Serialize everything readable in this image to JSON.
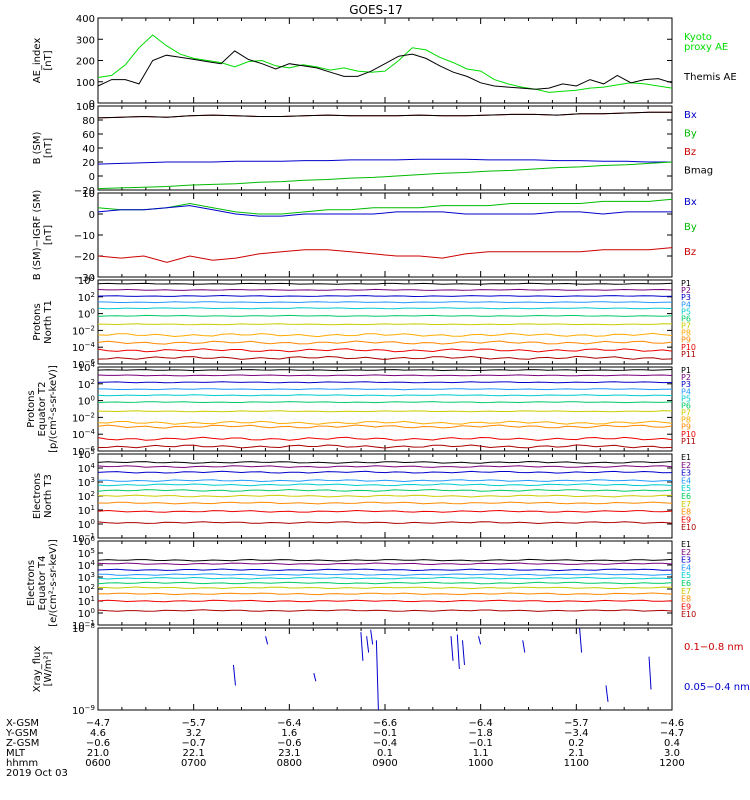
{
  "title": "GOES-17",
  "chart_data": [
    {
      "id": "ae",
      "type": "line",
      "ylabel": [
        "AE_index",
        "[nT]"
      ],
      "ylim": [
        0,
        400
      ],
      "ticks": [
        "400",
        "300",
        "200",
        "100",
        "0"
      ],
      "legend": [
        {
          "text": "Kyoto",
          "color": "#00dd00"
        },
        {
          "text": "proxy AE",
          "color": "#00dd00"
        },
        {
          "text": "Themis AE",
          "color": "#000000"
        }
      ],
      "series": [
        {
          "color": "#00dd00",
          "values": [
            120,
            130,
            180,
            260,
            320,
            270,
            230,
            210,
            200,
            190,
            170,
            195,
            200,
            175,
            165,
            180,
            170,
            155,
            165,
            150,
            145,
            150,
            200,
            260,
            250,
            215,
            190,
            160,
            150,
            110,
            90,
            75,
            65,
            50,
            55,
            60,
            70,
            75,
            85,
            95,
            90,
            80,
            70
          ]
        },
        {
          "color": "#000000",
          "values": [
            80,
            110,
            110,
            90,
            200,
            225,
            215,
            205,
            195,
            185,
            245,
            205,
            185,
            160,
            185,
            175,
            165,
            145,
            125,
            125,
            150,
            185,
            220,
            230,
            210,
            175,
            145,
            125,
            95,
            80,
            75,
            70,
            65,
            70,
            90,
            80,
            110,
            90,
            130,
            95,
            110,
            115,
            95
          ]
        }
      ]
    },
    {
      "id": "bsm",
      "type": "line",
      "ylabel": [
        "B (SM)",
        "[nT]"
      ],
      "ylim": [
        -20,
        100
      ],
      "ticks": [
        "100",
        "80",
        "60",
        "40",
        "20",
        "0",
        "−20"
      ],
      "legend": [
        {
          "text": "Bx",
          "color": "#0000cc"
        },
        {
          "text": "By",
          "color": "#00bb00"
        },
        {
          "text": "Bz",
          "color": "#cc0000"
        },
        {
          "text": "Bmag",
          "color": "#000000"
        }
      ],
      "series": [
        {
          "color": "#cc0000",
          "values": [
            83,
            84,
            85,
            84,
            86,
            87,
            86,
            85,
            85,
            86,
            87,
            86,
            86,
            86,
            87,
            86,
            86,
            87,
            88,
            88,
            87,
            89,
            89,
            90,
            91,
            91
          ]
        },
        {
          "color": "#000000",
          "values": [
            83,
            84,
            85,
            84,
            86,
            87,
            86,
            85,
            85,
            86,
            87,
            86,
            86,
            86,
            87,
            86,
            86,
            87,
            88,
            88,
            87,
            89,
            89,
            90,
            91,
            91
          ]
        },
        {
          "color": "#0000cc",
          "values": [
            17,
            18,
            19,
            20,
            20,
            20,
            21,
            21,
            21,
            22,
            22,
            23,
            23,
            23,
            24,
            24,
            24,
            23,
            23,
            23,
            22,
            22,
            21,
            21,
            20,
            20
          ]
        },
        {
          "color": "#00bb00",
          "values": [
            -18,
            -17,
            -16,
            -15,
            -13,
            -12,
            -11,
            -9,
            -8,
            -6,
            -5,
            -3,
            -2,
            0,
            2,
            4,
            5,
            7,
            8,
            10,
            12,
            13,
            15,
            16,
            18,
            20
          ]
        }
      ]
    },
    {
      "id": "bsm-igrf",
      "type": "line",
      "ylabel": [
        "B (SM)−IGRF (SM)",
        "[nT]"
      ],
      "ylim": [
        -30,
        10
      ],
      "ticks": [
        "10",
        "0",
        "−10",
        "−20",
        "−30"
      ],
      "legend": [
        {
          "text": "Bx",
          "color": "#0000cc"
        },
        {
          "text": "By",
          "color": "#00bb00"
        },
        {
          "text": "Bz",
          "color": "#cc0000"
        }
      ],
      "series": [
        {
          "color": "#00bb00",
          "values": [
            3,
            2,
            2,
            3,
            5,
            3,
            1,
            0,
            0,
            1,
            2,
            2,
            3,
            3,
            3,
            4,
            4,
            4,
            5,
            5,
            5,
            5,
            6,
            6,
            6,
            7
          ]
        },
        {
          "color": "#0000cc",
          "values": [
            1,
            2,
            2,
            3,
            4,
            2,
            0,
            -1,
            -1,
            0,
            0,
            0,
            0,
            1,
            1,
            1,
            0,
            0,
            0,
            0,
            1,
            1,
            0,
            1,
            1,
            1
          ]
        },
        {
          "color": "#cc0000",
          "values": [
            -20,
            -21,
            -20,
            -23,
            -20,
            -22,
            -21,
            -19,
            -18,
            -17,
            -17,
            -18,
            -19,
            -20,
            -20,
            -21,
            -19,
            -18,
            -18,
            -18,
            -18,
            -18,
            -17,
            -17,
            -17,
            -16
          ]
        }
      ]
    },
    {
      "id": "protons-t1",
      "type": "line",
      "scale": "log",
      "ylabel": [
        "Protons",
        "North T1"
      ],
      "ylim": [
        -7,
        4
      ],
      "ticks": [
        {
          "m": "10",
          "e": "4"
        },
        {
          "m": "10",
          "e": "2"
        },
        {
          "m": "10",
          "e": "0"
        },
        {
          "m": "10",
          "e": "−2"
        },
        {
          "m": "10",
          "e": "−4"
        },
        {
          "m": "10",
          "e": "−6"
        }
      ],
      "channels": [
        {
          "name": "P1",
          "color": "#000000",
          "level": 3.5
        },
        {
          "name": "P2",
          "color": "#7a007a",
          "level": 2.7
        },
        {
          "name": "P3",
          "color": "#0000cc",
          "level": 1.9
        },
        {
          "name": "P4",
          "color": "#2299ff",
          "level": 1.1
        },
        {
          "name": "P5",
          "color": "#00cccc",
          "level": 0.3
        },
        {
          "name": "P6",
          "color": "#00cc66",
          "level": -0.7
        },
        {
          "name": "P7",
          "color": "#cccc00",
          "level": -1.8
        },
        {
          "name": "P8",
          "color": "#ffaa00",
          "level": -3.2
        },
        {
          "name": "P9",
          "color": "#ff8800",
          "level": -4.2
        },
        {
          "name": "P10",
          "color": "#ee0000",
          "level": -5.2
        },
        {
          "name": "P11",
          "color": "#aa0000",
          "level": -6.2
        }
      ]
    },
    {
      "id": "protons-t2",
      "type": "line",
      "scale": "log",
      "ylabel": [
        "Protons",
        "Equator T2",
        "[p/(cm²-s-sr-keV)]"
      ],
      "ylim": [
        -7,
        4
      ],
      "ticks": [
        {
          "m": "10",
          "e": "4"
        },
        {
          "m": "10",
          "e": "2"
        },
        {
          "m": "10",
          "e": "0"
        },
        {
          "m": "10",
          "e": "−2"
        },
        {
          "m": "10",
          "e": "−4"
        },
        {
          "m": "10",
          "e": "−6"
        }
      ],
      "channels": [
        {
          "name": "P1",
          "color": "#000000",
          "level": 3.6
        },
        {
          "name": "P2",
          "color": "#7a007a",
          "level": 2.9
        },
        {
          "name": "P3",
          "color": "#0000cc",
          "level": 2.0
        },
        {
          "name": "P4",
          "color": "#2299ff",
          "level": 1.1
        },
        {
          "name": "P5",
          "color": "#00cccc",
          "level": 0.3
        },
        {
          "name": "P6",
          "color": "#00cc66",
          "level": -0.6
        },
        {
          "name": "P7",
          "color": "#cccc00",
          "level": -1.8
        },
        {
          "name": "P8",
          "color": "#ffaa00",
          "level": -3.3
        },
        {
          "name": "P9",
          "color": "#ff8800",
          "level": -3.8
        },
        {
          "name": "P10",
          "color": "#ee0000",
          "level": -5.4
        },
        {
          "name": "P11",
          "color": "#aa0000",
          "level": -6.4
        }
      ]
    },
    {
      "id": "electrons-t3",
      "type": "line",
      "scale": "log",
      "ylabel": [
        "Electrons",
        "North T3"
      ],
      "ylim": [
        -1,
        5
      ],
      "ticks": [
        {
          "m": "10",
          "e": "5"
        },
        {
          "m": "10",
          "e": "4"
        },
        {
          "m": "10",
          "e": "3"
        },
        {
          "m": "10",
          "e": "2"
        },
        {
          "m": "10",
          "e": "1"
        },
        {
          "m": "10",
          "e": "0"
        },
        {
          "m": "10",
          "e": "−1"
        }
      ],
      "channels": [
        {
          "name": "E1",
          "color": "#000000",
          "level": 4.4
        },
        {
          "name": "E2",
          "color": "#7a007a",
          "level": 4.1
        },
        {
          "name": "E3",
          "color": "#0000cc",
          "level": 3.7
        },
        {
          "name": "E4",
          "color": "#2299ff",
          "level": 3.1
        },
        {
          "name": "E5",
          "color": "#00cccc",
          "level": 2.8
        },
        {
          "name": "E6",
          "color": "#00cc66",
          "level": 2.4
        },
        {
          "name": "E7",
          "color": "#cccc00",
          "level": 2.0
        },
        {
          "name": "E8",
          "color": "#ff8800",
          "level": 1.5
        },
        {
          "name": "E9",
          "color": "#ee0000",
          "level": 0.9
        },
        {
          "name": "E10",
          "color": "#aa0000",
          "level": 0.1
        }
      ]
    },
    {
      "id": "electrons-t4",
      "type": "line",
      "scale": "log",
      "ylabel": [
        "Electrons",
        "Equator T4",
        "[e/(cm²-s-sr-keV)]"
      ],
      "ylim": [
        -1,
        6
      ],
      "ticks": [
        {
          "m": "10",
          "e": "6"
        },
        {
          "m": "10",
          "e": "5"
        },
        {
          "m": "10",
          "e": "4"
        },
        {
          "m": "10",
          "e": "3"
        },
        {
          "m": "10",
          "e": "2"
        },
        {
          "m": "10",
          "e": "1"
        },
        {
          "m": "10",
          "e": "0"
        },
        {
          "m": "10",
          "e": "−1"
        }
      ],
      "channels": [
        {
          "name": "E1",
          "color": "#000000",
          "level": 4.4
        },
        {
          "name": "E2",
          "color": "#7a007a",
          "level": 4.1
        },
        {
          "name": "E3",
          "color": "#0000cc",
          "level": 3.6
        },
        {
          "name": "E4",
          "color": "#2299ff",
          "level": 3.2
        },
        {
          "name": "E5",
          "color": "#00cccc",
          "level": 2.9
        },
        {
          "name": "E6",
          "color": "#00cc66",
          "level": 2.5
        },
        {
          "name": "E7",
          "color": "#cccc00",
          "level": 2.1
        },
        {
          "name": "E8",
          "color": "#ff8800",
          "level": 1.6
        },
        {
          "name": "E9",
          "color": "#ee0000",
          "level": 1.0
        },
        {
          "name": "E10",
          "color": "#aa0000",
          "level": 0.2
        }
      ]
    },
    {
      "id": "xray",
      "type": "line",
      "scale": "log",
      "ylabel": [
        "Xray_flux",
        "[W/m²]"
      ],
      "ylim": [
        -9,
        -8
      ],
      "ticks": [
        {
          "m": "10",
          "e": "−8"
        },
        {
          "m": "10",
          "e": "−9"
        }
      ],
      "legend": [
        {
          "text": "0.1−0.8 nm",
          "color": "#cc0000"
        },
        {
          "text": "0.05−0.4 nm",
          "color": "#0000cc"
        }
      ],
      "bursts": [
        {
          "t": 0.236,
          "lo": -8.7,
          "hi": -8.45
        },
        {
          "t": 0.292,
          "lo": -8.2,
          "hi": -8.1
        },
        {
          "t": 0.376,
          "lo": -8.65,
          "hi": -8.55
        },
        {
          "t": 0.458,
          "lo": -8.4,
          "hi": -8.05
        },
        {
          "t": 0.468,
          "lo": -8.3,
          "hi": -8.1
        },
        {
          "t": 0.475,
          "lo": -8.2,
          "hi": -8.02
        },
        {
          "t": 0.485,
          "lo": -9.0,
          "hi": -8.15
        },
        {
          "t": 0.615,
          "lo": -8.4,
          "hi": -8.1
        },
        {
          "t": 0.626,
          "lo": -8.5,
          "hi": -8.08
        },
        {
          "t": 0.635,
          "lo": -8.45,
          "hi": -8.15
        },
        {
          "t": 0.663,
          "lo": -8.2,
          "hi": -8.1
        },
        {
          "t": 0.74,
          "lo": -8.3,
          "hi": -8.15
        },
        {
          "t": 0.839,
          "lo": -8.3,
          "hi": -8.0
        },
        {
          "t": 0.885,
          "lo": -8.9,
          "hi": -8.7
        },
        {
          "t": 0.96,
          "lo": -8.75,
          "hi": -8.35
        }
      ]
    }
  ],
  "ephemeris": {
    "rows": [
      {
        "label": "X-GSM",
        "values": [
          "−4.7",
          "−5.7",
          "−6.4",
          "−6.6",
          "−6.4",
          "−5.7",
          "−4.6"
        ]
      },
      {
        "label": "Y-GSM",
        "values": [
          "4.6",
          "3.2",
          "1.6",
          "−0.1",
          "−1.8",
          "−3.4",
          "−4.7"
        ]
      },
      {
        "label": "Z-GSM",
        "values": [
          "−0.6",
          "−0.7",
          "−0.6",
          "−0.4",
          "−0.1",
          "0.2",
          "0.4"
        ]
      },
      {
        "label": "MLT",
        "values": [
          "21.0",
          "22.1",
          "23.1",
          "0.1",
          "1.1",
          "2.1",
          "3.0"
        ]
      },
      {
        "label": "hhmm",
        "values": [
          "0600",
          "0700",
          "0800",
          "0900",
          "1000",
          "1100",
          "1200"
        ]
      }
    ],
    "date": "2019 Oct 03"
  }
}
